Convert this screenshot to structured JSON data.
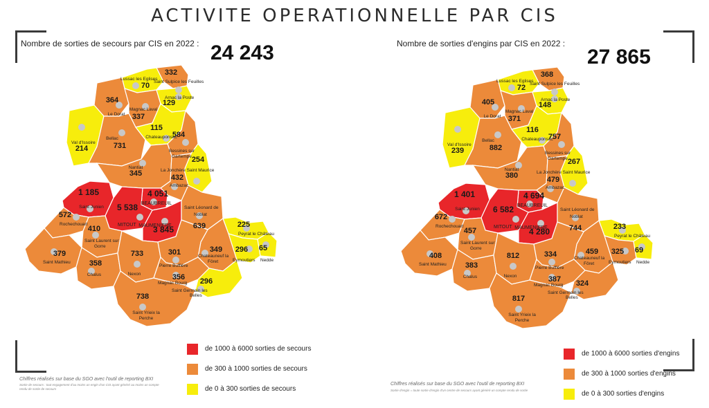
{
  "title": "ACTIVITE OPERATIONNELLE PAR CIS",
  "colors": {
    "red": "#e8262a",
    "orange": "#ec8a3a",
    "yellow": "#f7ed0c",
    "border": "#ffffff",
    "dot": "#c8c8c8"
  },
  "left": {
    "heading": "Nombre de sorties de secours par CIS en 2022 :",
    "total": "24 243",
    "legend": [
      {
        "label": "de 1000 à 6000 sorties de secours",
        "color": "#e8262a"
      },
      {
        "label": "de 300 à 1000 sorties de secours",
        "color": "#ec8a3a"
      },
      {
        "label": "de 0 à 300 sorties de secours",
        "color": "#f7ed0c"
      }
    ],
    "footnote": "Chiffres réalisés sur base du SGO avec l'outil de reporting BXI",
    "footnote_small": "Sortie de secours : tout engagement d'au moins un engin d'un CIS ayant généré au moins un compte rendu de sortie de secours",
    "values": {
      "saint_sulpice": "332",
      "lussac": "70",
      "le_dorat": "364",
      "magnac_laval": "337",
      "arnac": "129",
      "val_issoire": "214",
      "bellac": "731",
      "chateauponsac": "115",
      "bessines": "584",
      "nantiat": "345",
      "la_jonchere": "254",
      "ambazac": "432",
      "saint_junien": "1 185",
      "beaubreuil": "4 051",
      "mitout": "5 538",
      "rochechouart": "572",
      "saint_laurent": "410",
      "maumeniere": "3 845",
      "saint_leonard": "639",
      "peyrat": "225",
      "eymoutiers": "296",
      "nedde": "65",
      "chateauneuf": "349",
      "saint_mathieu": "379",
      "chalus": "358",
      "nexon": "733",
      "pierre_buffiere": "301",
      "magnac_bourg": "356",
      "saint_germain": "296",
      "saint_yrieix": "738"
    }
  },
  "right": {
    "heading": "Nombre de sorties d'engins par CIS en 2022 :",
    "total": "27 865",
    "legend": [
      {
        "label": "de 1000 à 6000 sorties d'engins",
        "color": "#e8262a"
      },
      {
        "label": "de 300 à 1000 sorties d'engins",
        "color": "#ec8a3a"
      },
      {
        "label": "de 0 à 300 sorties d'engins",
        "color": "#f7ed0c"
      }
    ],
    "footnote": "Chiffres réalisés sur base du SGO avec l'outil de reporting BXI",
    "footnote_small": "Sortie d'engin = toute sortie d'engin d'un centre de secours ayant généré un compte rendu de sortie",
    "values": {
      "saint_sulpice": "368",
      "lussac": "72",
      "le_dorat": "405",
      "magnac_laval": "371",
      "arnac": "148",
      "val_issoire": "239",
      "bellac": "882",
      "chateauponsac": "116",
      "bessines": "757",
      "nantiat": "380",
      "la_jonchere": "267",
      "ambazac": "479",
      "saint_junien": "1 401",
      "beaubreuil": "4 694",
      "mitout": "6 582",
      "rochechouart": "672",
      "saint_laurent": "457",
      "maumeniere": "4 280",
      "saint_leonard": "744",
      "peyrat": "233",
      "eymoutiers": "325",
      "nedde": "69",
      "chateauneuf": "459",
      "saint_mathieu": "408",
      "chalus": "383",
      "nexon": "812",
      "pierre_buffiere": "334",
      "magnac_bourg": "387",
      "saint_germain": "324",
      "saint_yrieix": "817"
    }
  },
  "place_names": {
    "lussac": "Lussac les Eglises",
    "saint_sulpice": "Saint Sulpice les Feuilles",
    "magnac_laval": "Magnac Laval",
    "arnac": "Arnac la Poste",
    "le_dorat": "Le Dorat",
    "chateauponsac": "Chateauponsac",
    "val_issoire": "Val d'Issoire",
    "bellac": "Bellac",
    "bessines_1": "Bessines sur",
    "bessines_2": "Gartempe",
    "nantiat": "Nantiat",
    "la_jonchere": "La Jonchère Saint Maurice",
    "ambazac": "Ambazac",
    "saint_junien": "Saint Junien",
    "beaubreuil": "BEAUBREUIL",
    "saint_leonard_1": "Saint Léonard de",
    "saint_leonard_2": "Noblat",
    "rochechouart": "Rochechouart",
    "mitout": "MITOUT",
    "maumeniere": "MAUMENIERE",
    "peyrat": "Peyrat le Château",
    "saint_laurent_1": "Saint Laurent sur",
    "saint_laurent_2": "Gorre",
    "chateauneuf_1": "Chateauneuf la",
    "chateauneuf_2": "Fôret",
    "eymoutiers": "Eymoutiers",
    "nedde": "Nedde",
    "saint_mathieu": "Saint Mathieu",
    "pierre_buffiere": "Pierre Buffière",
    "chalus": "Chalus",
    "nexon": "Nexon",
    "magnac_bourg": "Magnac Bourg",
    "saint_germain_1": "Saint Germain les",
    "saint_germain_2": "Belles",
    "saint_yrieix_1": "Saint Yrieix la",
    "saint_yrieix_2": "Perche"
  }
}
